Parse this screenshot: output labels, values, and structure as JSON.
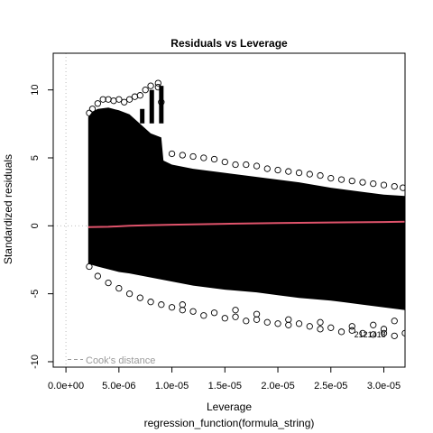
{
  "chart_data": {
    "type": "scatter",
    "title": "Residuals vs Leverage",
    "xlabel": "Leverage",
    "xsublabel": "regression_function(formula_string)",
    "ylabel": "Standardized residuals",
    "xlim": [
      -1.2e-06,
      3.2e-05
    ],
    "ylim": [
      -10.4,
      12.7
    ],
    "xticks": [
      0,
      5e-06,
      1e-05,
      1.5e-05,
      2e-05,
      2.5e-05,
      3e-05
    ],
    "xtick_labels": [
      "0.0e+00",
      "5.0e-06",
      "1.0e-05",
      "1.5e-05",
      "2.0e-05",
      "2.5e-05",
      "3.0e-05"
    ],
    "yticks": [
      -10,
      -5,
      0,
      5,
      10
    ],
    "ytick_labels": [
      "-10",
      "-5",
      "0",
      "5",
      "10"
    ],
    "grid": false,
    "legend": {
      "position": "bottom-left",
      "entry": "Cook's distance"
    },
    "point_label": "2121418",
    "series": [
      {
        "kind": "points",
        "marker": "open-circle",
        "color": "#000000",
        "points": [
          [
            2.2e-06,
            8.3
          ],
          [
            2.5e-06,
            8.6
          ],
          [
            3e-06,
            9.0
          ],
          [
            3.5e-06,
            9.3
          ],
          [
            4e-06,
            9.3
          ],
          [
            4.5e-06,
            9.2
          ],
          [
            5e-06,
            9.3
          ],
          [
            5.5e-06,
            9.1
          ],
          [
            6e-06,
            9.3
          ],
          [
            6.5e-06,
            9.5
          ],
          [
            7e-06,
            9.6
          ],
          [
            7.5e-06,
            10.0
          ],
          [
            8e-06,
            10.3
          ],
          [
            8.7e-06,
            10.5
          ],
          [
            8.7e-06,
            10.2
          ],
          [
            9e-06,
            9.1
          ],
          [
            1e-05,
            5.3
          ],
          [
            1.1e-05,
            5.2
          ],
          [
            1.2e-05,
            5.1
          ],
          [
            1.3e-05,
            5.0
          ],
          [
            1.4e-05,
            4.9
          ],
          [
            1.5e-05,
            4.7
          ],
          [
            1.6e-05,
            4.5
          ],
          [
            1.7e-05,
            4.5
          ],
          [
            1.8e-05,
            4.4
          ],
          [
            1.9e-05,
            4.2
          ],
          [
            2e-05,
            4.1
          ],
          [
            2.1e-05,
            4.0
          ],
          [
            2.2e-05,
            3.9
          ],
          [
            2.3e-05,
            3.8
          ],
          [
            2.4e-05,
            3.7
          ],
          [
            2.5e-05,
            3.5
          ],
          [
            2.6e-05,
            3.4
          ],
          [
            2.7e-05,
            3.3
          ],
          [
            2.8e-05,
            3.2
          ],
          [
            2.9e-05,
            3.1
          ],
          [
            3e-05,
            3.0
          ],
          [
            3.1e-05,
            2.9
          ],
          [
            3.18e-05,
            2.8
          ],
          [
            2.2e-06,
            -3.0
          ],
          [
            3e-06,
            -3.7
          ],
          [
            4e-06,
            -4.2
          ],
          [
            5e-06,
            -4.6
          ],
          [
            6e-06,
            -5.0
          ],
          [
            7e-06,
            -5.3
          ],
          [
            8e-06,
            -5.6
          ],
          [
            9e-06,
            -5.8
          ],
          [
            1e-05,
            -6.0
          ],
          [
            1.1e-05,
            -6.2
          ],
          [
            1.2e-05,
            -6.3
          ],
          [
            1.3e-05,
            -6.6
          ],
          [
            1.4e-05,
            -6.4
          ],
          [
            1.5e-05,
            -6.8
          ],
          [
            1.6e-05,
            -6.7
          ],
          [
            1.7e-05,
            -7.0
          ],
          [
            1.8e-05,
            -6.9
          ],
          [
            1.9e-05,
            -7.1
          ],
          [
            2e-05,
            -7.2
          ],
          [
            2.1e-05,
            -7.3
          ],
          [
            2.2e-05,
            -7.2
          ],
          [
            2.3e-05,
            -7.4
          ],
          [
            2.4e-05,
            -7.6
          ],
          [
            2.5e-05,
            -7.5
          ],
          [
            2.6e-05,
            -7.8
          ],
          [
            2.7e-05,
            -7.7
          ],
          [
            2.8e-05,
            -7.9
          ],
          [
            2.9e-05,
            -8.0
          ],
          [
            3e-05,
            -7.9
          ],
          [
            3.1e-05,
            -8.1
          ],
          [
            3.2e-05,
            -7.9
          ],
          [
            1.8e-05,
            -6.5
          ],
          [
            2.1e-05,
            -6.9
          ],
          [
            2.4e-05,
            -7.1
          ],
          [
            2.7e-05,
            -7.4
          ],
          [
            3e-05,
            -7.6
          ],
          [
            1.1e-05,
            -5.8
          ],
          [
            1.6e-05,
            -6.2
          ],
          [
            2.9e-05,
            -7.3
          ],
          [
            3.1e-05,
            -7.0
          ]
        ]
      },
      {
        "kind": "smooth",
        "color": "#df536b",
        "points": [
          [
            2.1e-06,
            -0.1
          ],
          [
            4e-06,
            -0.07
          ],
          [
            6e-06,
            0.0
          ],
          [
            8e-06,
            0.05
          ],
          [
            1e-05,
            0.08
          ],
          [
            1.5e-05,
            0.15
          ],
          [
            2e-05,
            0.2
          ],
          [
            2.5e-05,
            0.25
          ],
          [
            3e-05,
            0.28
          ],
          [
            3.2e-05,
            0.3
          ]
        ]
      }
    ],
    "dense_band": {
      "color": "#000000",
      "upper": [
        [
          2.1e-06,
          8.0
        ],
        [
          2.5e-06,
          8.4
        ],
        [
          3e-06,
          8.6
        ],
        [
          4e-06,
          8.7
        ],
        [
          5e-06,
          8.5
        ],
        [
          6e-06,
          8.2
        ],
        [
          7e-06,
          7.5
        ],
        [
          8e-06,
          6.8
        ],
        [
          9e-06,
          6.5
        ],
        [
          9.2e-06,
          4.8
        ],
        [
          1e-05,
          4.5
        ],
        [
          1.2e-05,
          4.2
        ],
        [
          1.5e-05,
          3.9
        ],
        [
          1.8e-05,
          3.6
        ],
        [
          2e-05,
          3.4
        ],
        [
          2.2e-05,
          3.2
        ],
        [
          2.5e-05,
          2.8
        ],
        [
          2.8e-05,
          2.5
        ],
        [
          3e-05,
          2.3
        ],
        [
          3.2e-05,
          2.2
        ]
      ],
      "lower": [
        [
          2.1e-06,
          -2.8
        ],
        [
          3e-06,
          -3.0
        ],
        [
          4e-06,
          -3.2
        ],
        [
          5e-06,
          -3.4
        ],
        [
          6e-06,
          -3.5
        ],
        [
          8e-06,
          -3.8
        ],
        [
          1e-05,
          -4.1
        ],
        [
          1.2e-05,
          -4.4
        ],
        [
          1.5e-05,
          -4.7
        ],
        [
          1.8e-05,
          -4.9
        ],
        [
          2e-05,
          -5.1
        ],
        [
          2.2e-05,
          -5.3
        ],
        [
          2.5e-05,
          -5.5
        ],
        [
          2.8e-05,
          -5.8
        ],
        [
          3e-05,
          -6.0
        ],
        [
          3.2e-05,
          -6.2
        ]
      ],
      "spikes": [
        [
          7.2e-06,
          8.6
        ],
        [
          8.1e-06,
          10.0
        ],
        [
          9e-06,
          10.3
        ]
      ]
    },
    "reference_lines": [
      {
        "axis": "y",
        "value": 0,
        "style": "dotted",
        "color": "#bebebe"
      },
      {
        "axis": "x",
        "value": 0,
        "style": "dotted",
        "color": "#bebebe"
      }
    ]
  }
}
